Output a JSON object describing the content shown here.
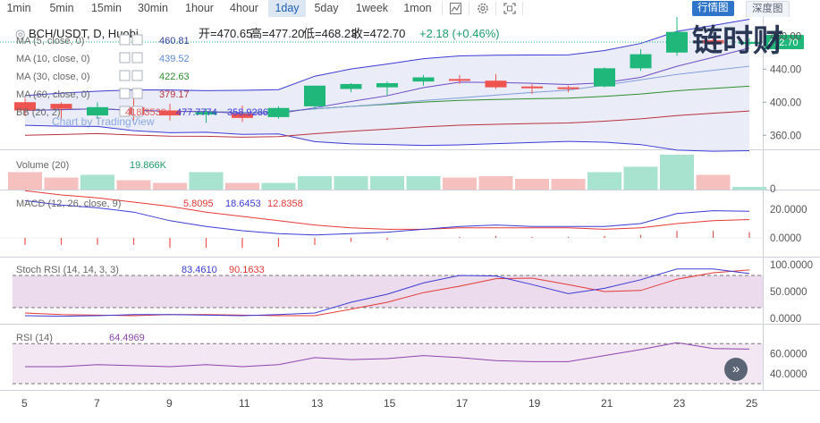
{
  "toolbar": {
    "timeframes": [
      "1min",
      "5min",
      "15min",
      "30min",
      "1hour",
      "4hour",
      "1day",
      "5day",
      "1week",
      "1mon"
    ],
    "active_timeframe": "1day",
    "icons": [
      "line-chart-icon",
      "gear-icon",
      "fullscreen-icon"
    ],
    "tabs": [
      "行情图",
      "深度图"
    ]
  },
  "watermark": "链时财",
  "symbol": {
    "pair": "BCH/USDT, D, Huobi",
    "ohlc": [
      "开=470.65",
      "高=477.20",
      "低=468.23",
      "收=472.70",
      "+2.18 (+0.46%)"
    ]
  },
  "overlay_legend": [
    {
      "label": "MA (5, close, 0)",
      "value": "460.81",
      "color": "#2e3f9e"
    },
    {
      "label": "MA (10, close, 0)",
      "value": "439.52",
      "color": "#5b8bd6"
    },
    {
      "label": "MA (30, close, 0)",
      "value": "422.63",
      "color": "#2f8f2f"
    },
    {
      "label": "MA (60, close, 0)",
      "value": "379.17",
      "color": "#b8323e"
    },
    {
      "label": "BB (20, 2)",
      "values": [
        "418.3530",
        "477.7774",
        "358.9286"
      ],
      "value_colors": [
        "#e35b5b",
        "#3b3bd6",
        "#3b3bd6"
      ]
    }
  ],
  "tv_attribution": "Chart by TradingView",
  "price_axis": {
    "ticks": [
      "480.00",
      "440.00",
      "400.00",
      "360.00"
    ],
    "current": "472.70",
    "top_label": "500.00"
  },
  "time_axis": {
    "ticks": [
      "5",
      "7",
      "9",
      "11",
      "13",
      "15",
      "17",
      "19",
      "21",
      "23",
      "25"
    ]
  },
  "colors": {
    "up": "#26a69a",
    "up_fill": "#1fb87a",
    "down": "#ef5350",
    "bb": "#3b3bd6",
    "bb_fill": "#e3e6f4",
    "ma5": "#6a4bc4",
    "ma10": "#7f9edb",
    "ma30": "#2f8f2f",
    "ma60": "#b8323e"
  },
  "volume": {
    "label": "Volume (20)",
    "value": "19.866K",
    "ticks": [
      "0"
    ]
  },
  "macd": {
    "label": "MACD (12, 26, close, 9)",
    "values": [
      "5.8095",
      "18.6453",
      "12.8358"
    ],
    "value_colors": [
      "#e53935",
      "#3b3bd6",
      "#e53935"
    ],
    "ticks": [
      "20.0000",
      "0.0000"
    ]
  },
  "stoch": {
    "label": "Stoch RSI (14, 14, 3, 3)",
    "values": [
      "83.4610",
      "90.1633"
    ],
    "value_colors": [
      "#3b3bd6",
      "#e53935"
    ],
    "ticks": [
      "100.0000",
      "50.0000",
      "0.0000"
    ]
  },
  "rsi": {
    "label": "RSI (14)",
    "value": "64.4969",
    "ticks": [
      "60.0000",
      "40.0000"
    ]
  },
  "chart_data": {
    "type": "candlestick",
    "x": [
      "5",
      "6",
      "7",
      "8",
      "9",
      "10",
      "11",
      "12",
      "13",
      "14",
      "15",
      "16",
      "17",
      "18",
      "19",
      "20",
      "21",
      "22",
      "23",
      "24",
      "25"
    ],
    "ohlc": [
      [
        400,
        405,
        383,
        390
      ],
      [
        398,
        400,
        380,
        392
      ],
      [
        384,
        400,
        380,
        394
      ],
      [
        394,
        410,
        378,
        385
      ],
      [
        390,
        398,
        378,
        384
      ],
      [
        385,
        392,
        375,
        388
      ],
      [
        386,
        396,
        376,
        381
      ],
      [
        382,
        395,
        380,
        393
      ],
      [
        395,
        420,
        392,
        420
      ],
      [
        416,
        423,
        412,
        422
      ],
      [
        418,
        425,
        408,
        423
      ],
      [
        425,
        433,
        420,
        430
      ],
      [
        428,
        433,
        422,
        426
      ],
      [
        426,
        434,
        416,
        418
      ],
      [
        419,
        422,
        410,
        417
      ],
      [
        418,
        420,
        412,
        416
      ],
      [
        419,
        442,
        418,
        441
      ],
      [
        441,
        464,
        438,
        458
      ],
      [
        460,
        503,
        456,
        485
      ],
      [
        475,
        478,
        468,
        471
      ],
      [
        470.65,
        477.2,
        468.23,
        472.7
      ]
    ],
    "volume": [
      13,
      9,
      11,
      7,
      5,
      13,
      5,
      5,
      10,
      10,
      10,
      10,
      9,
      10,
      8,
      8,
      13,
      17,
      26,
      11,
      2
    ],
    "macd_line": [
      26,
      23,
      21,
      18,
      12,
      8,
      5,
      3,
      2,
      3,
      4,
      6,
      8,
      9,
      8,
      8,
      8,
      10,
      17,
      19,
      18.6
    ],
    "signal_line": [
      33,
      30,
      28,
      25,
      22,
      18,
      15,
      12,
      9,
      7,
      6,
      6,
      7,
      7,
      7,
      7,
      6,
      7,
      10,
      12,
      12.8
    ],
    "histogram": [
      -7,
      -7,
      -7,
      -7,
      -10,
      -10,
      -10,
      -9,
      -7,
      -4,
      -2,
      0,
      1,
      2,
      1,
      1,
      2,
      3,
      7,
      7,
      5.8
    ],
    "stoch_k": [
      5,
      4,
      5,
      7,
      7,
      6,
      5,
      7,
      10,
      30,
      45,
      66,
      80,
      79,
      63,
      46,
      56,
      72,
      92,
      92,
      83.5
    ],
    "stoch_d": [
      10,
      7,
      6,
      5,
      7,
      7,
      6,
      5,
      5,
      17,
      30,
      48,
      60,
      74,
      75,
      63,
      50,
      52,
      73,
      85,
      90.2
    ],
    "rsi": [
      47,
      47,
      49,
      48,
      47,
      49,
      47,
      49,
      56,
      54,
      55,
      58,
      56,
      53,
      52,
      52,
      58,
      64,
      71,
      65,
      64.5
    ]
  }
}
